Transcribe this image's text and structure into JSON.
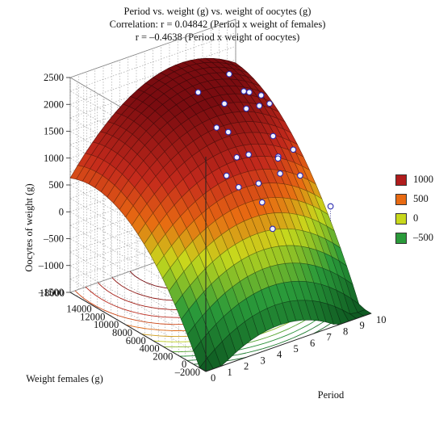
{
  "chart_data": {
    "type": "surface3d",
    "title_lines": [
      "Period vs. weight (g) vs. weight of oocytes (g)",
      "Correlation: r = 0.04842 (Period x weight of females)",
      "r = –0.4638 (Period x weight of oocytes)"
    ],
    "xlabel": "Period",
    "ylabel": "Weight females (g)",
    "zlabel": "Oocytes of weight (g)",
    "x_ticks": [
      "0",
      "1",
      "2",
      "3",
      "4",
      "5",
      "6",
      "7",
      "8",
      "9",
      "10"
    ],
    "y_ticks": [
      "–2000",
      "0",
      "2000",
      "4000",
      "6000",
      "8000",
      "10000",
      "12000",
      "14000",
      "18000"
    ],
    "z_ticks": [
      "2500",
      "2000",
      "1500",
      "1000",
      "500",
      "0",
      "–500",
      "–1000",
      "–1500"
    ],
    "xlim": [
      0,
      10
    ],
    "ylim": [
      -2000,
      18000
    ],
    "zlim": [
      -1500,
      2500
    ],
    "legend": {
      "position": "right",
      "items": [
        {
          "label": "1000",
          "color": "#b01c1c"
        },
        {
          "label": "500",
          "color": "#e86a12"
        },
        {
          "label": "0",
          "color": "#c8d81c"
        },
        {
          "label": "–500",
          "color": "#2a9a3a"
        }
      ]
    },
    "color_scale": [
      {
        "z": -1500,
        "color": "#0f5a22"
      },
      {
        "z": -700,
        "color": "#2a9a3a"
      },
      {
        "z": 0,
        "color": "#c8d81c"
      },
      {
        "z": 500,
        "color": "#e86a12"
      },
      {
        "z": 1000,
        "color": "#c42a1c"
      },
      {
        "z": 1800,
        "color": "#7a0c10"
      }
    ],
    "points": [
      {
        "x": 6.3,
        "y": 14500,
        "z": 1800
      },
      {
        "x": 6.8,
        "y": 13000,
        "z": 1200
      },
      {
        "x": 7.3,
        "y": 12500,
        "z": 1100
      },
      {
        "x": 7.6,
        "y": 13800,
        "z": 1500
      },
      {
        "x": 8.3,
        "y": 14800,
        "z": 1900
      },
      {
        "x": 8.8,
        "y": 13500,
        "z": 1300
      },
      {
        "x": 9.3,
        "y": 12800,
        "z": 1350
      },
      {
        "x": 9.7,
        "y": 13500,
        "z": 1450
      },
      {
        "x": 9.8,
        "y": 15500,
        "z": 1350
      },
      {
        "x": 10.0,
        "y": 16800,
        "z": 1250
      },
      {
        "x": 7.2,
        "y": 11000,
        "z": 750
      },
      {
        "x": 6.5,
        "y": 10800,
        "z": 500
      },
      {
        "x": 6.9,
        "y": 10000,
        "z": 300
      },
      {
        "x": 8.0,
        "y": 11200,
        "z": 700
      },
      {
        "x": 7.9,
        "y": 9500,
        "z": 300
      },
      {
        "x": 7.5,
        "y": 8000,
        "z": 100
      },
      {
        "x": 7.4,
        "y": 6200,
        "z": -250
      },
      {
        "x": 9.0,
        "y": 9000,
        "z": 400
      },
      {
        "x": 9.5,
        "y": 10500,
        "z": 550
      },
      {
        "x": 9.6,
        "y": 11500,
        "z": 850
      },
      {
        "x": 9.2,
        "y": 9800,
        "z": 600
      },
      {
        "x": 9.8,
        "y": 8000,
        "z": 350
      },
      {
        "x": 10.0,
        "y": 4000,
        "z": 50
      },
      {
        "x": 10.0,
        "y": 9500,
        "z": 700
      },
      {
        "x": 10.0,
        "y": 13000,
        "z": 1300
      }
    ],
    "surface": {
      "form": "quadratic",
      "coefficients": {
        "intercept": -1200,
        "x": 300,
        "y": 0.26,
        "x2": -32,
        "y2": -8.8e-06,
        "xy": 0.007
      }
    }
  }
}
